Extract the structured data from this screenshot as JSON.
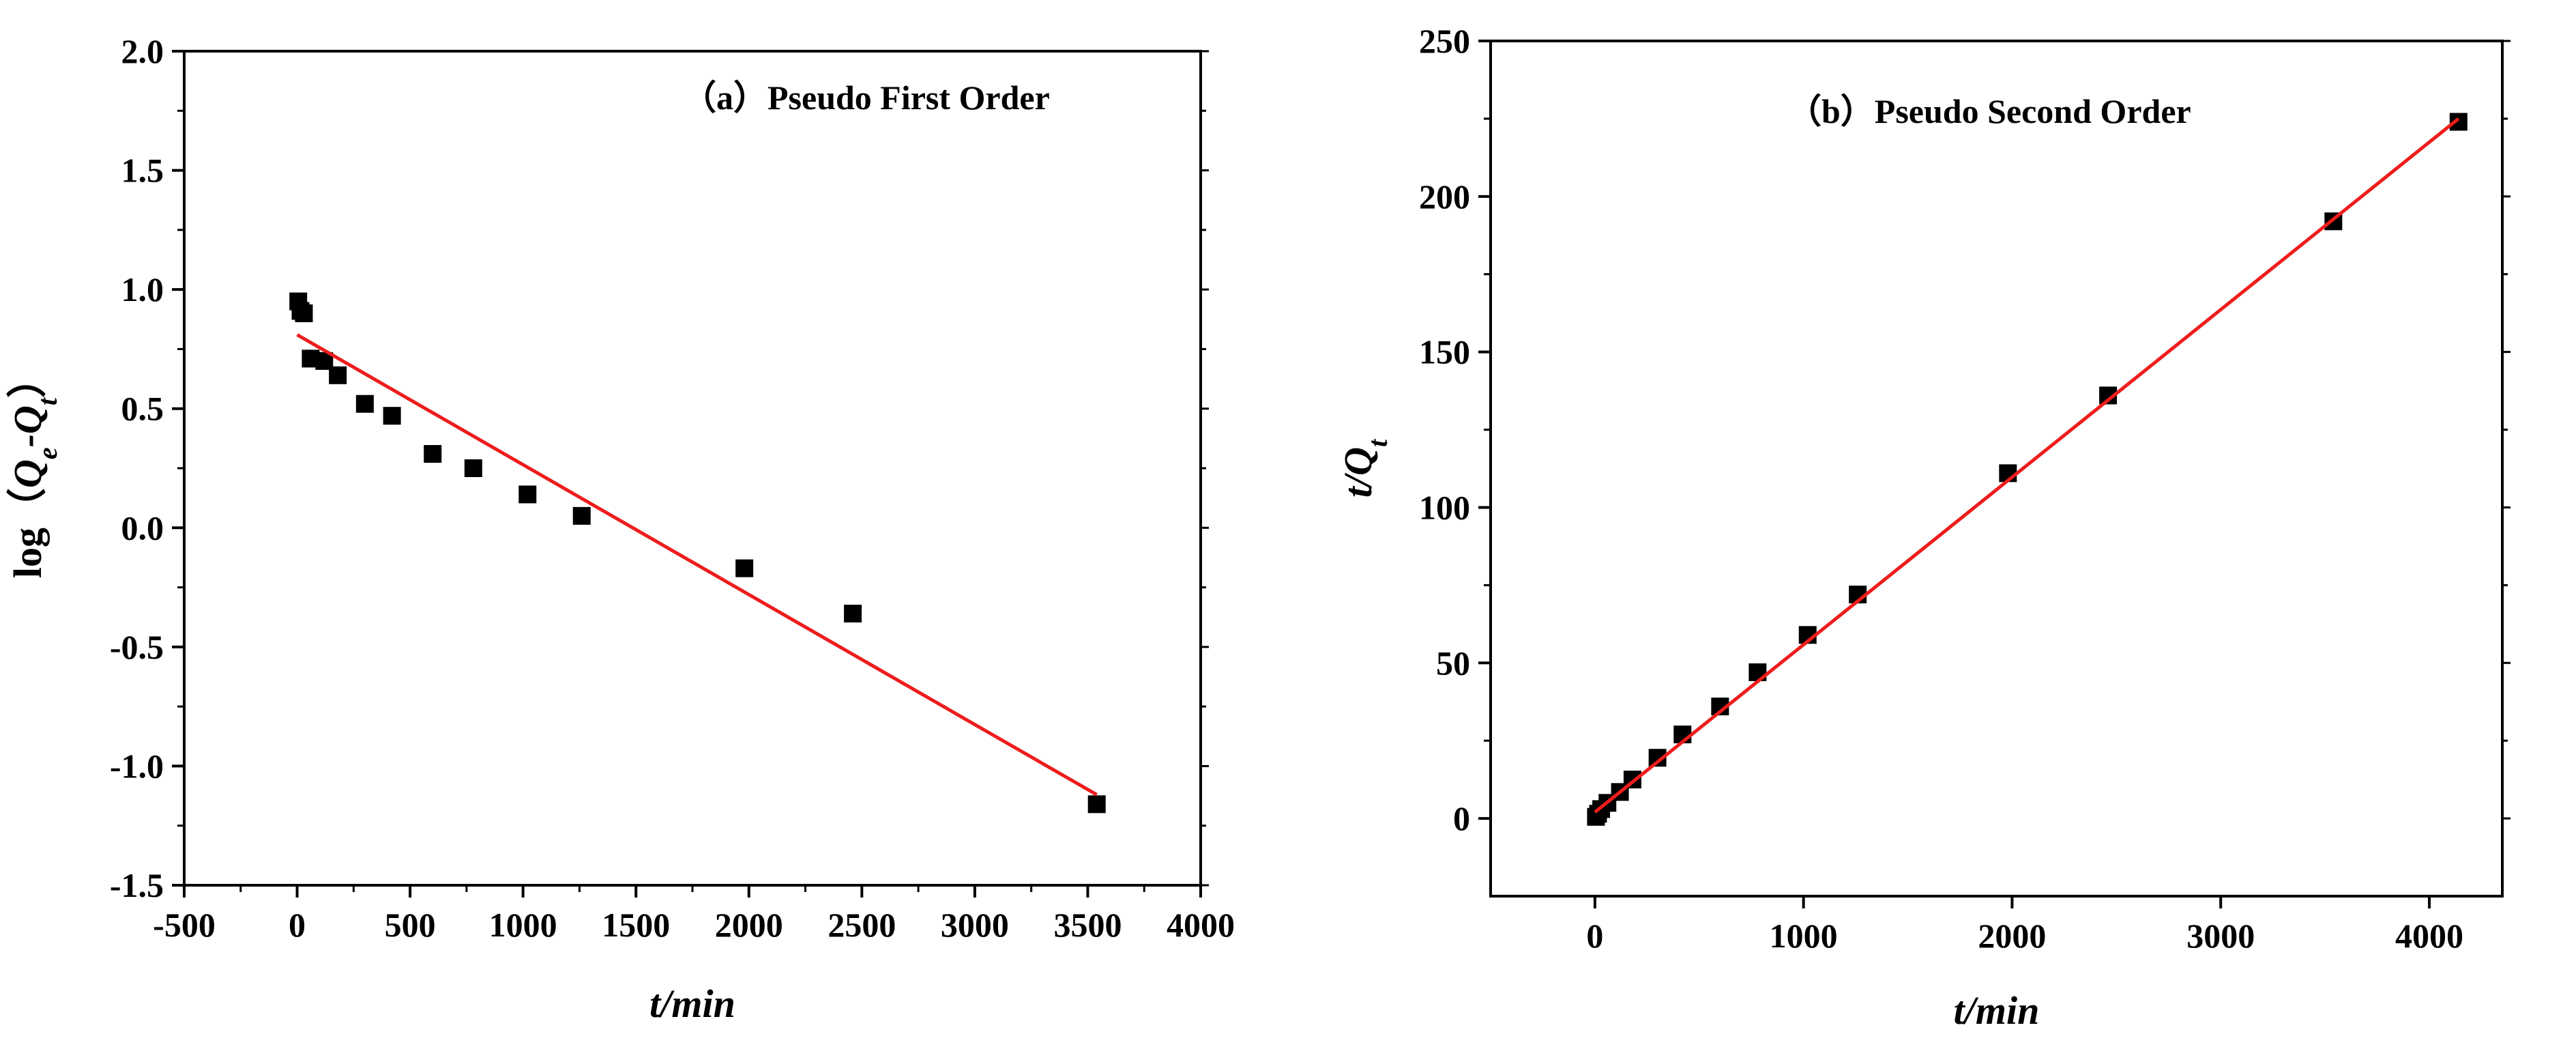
{
  "colors": {
    "points": "#000000",
    "fit_line": "#ee1c1c",
    "axes": "#000000"
  },
  "chart_data": [
    {
      "type": "scatter",
      "title": "（a）Pseudo First Order",
      "xlabel": "t/min",
      "ylabel_parts": [
        "log（",
        "Q",
        "e",
        "-",
        "Q",
        "t",
        "）"
      ],
      "xlim": [
        -500,
        4000
      ],
      "ylim": [
        -1.5,
        2.0
      ],
      "xticks": [
        -500,
        0,
        500,
        1000,
        1500,
        2000,
        2500,
        3000,
        3500,
        4000
      ],
      "xtick_labels": [
        "-500",
        "0",
        "500",
        "1000",
        "1500",
        "2000",
        "2500",
        "3000",
        "3500",
        "4000"
      ],
      "yticks": [
        -1.5,
        -1.0,
        -0.5,
        0.0,
        0.5,
        1.0,
        1.5,
        2.0
      ],
      "ytick_labels": [
        "-1.5",
        "-1.0",
        "-0.5",
        "0.0",
        "0.5",
        "1.0",
        "1.5",
        "2.0"
      ],
      "grid": false,
      "legend": "none",
      "series": [
        {
          "kind": "points",
          "x": [
            5,
            15,
            30,
            60,
            120,
            180,
            300,
            420,
            600,
            780,
            1020,
            1260,
            1980,
            2460,
            3540
          ],
          "y": [
            0.95,
            0.91,
            0.9,
            0.71,
            0.7,
            0.64,
            0.52,
            0.47,
            0.31,
            0.25,
            0.14,
            0.05,
            -0.17,
            -0.36,
            -1.16
          ]
        },
        {
          "kind": "fit_line",
          "x": [
            0,
            3540
          ],
          "y": [
            0.81,
            -1.12
          ]
        }
      ]
    },
    {
      "type": "scatter",
      "title": "（b）Pseudo Second Order",
      "xlabel": "t/min",
      "ylabel_parts": [
        "t",
        "/",
        "Q",
        "t"
      ],
      "xlim": [
        -500,
        4350
      ],
      "ylim": [
        -25,
        250
      ],
      "xticks": [
        0,
        1000,
        2000,
        3000,
        4000
      ],
      "xtick_labels": [
        "0",
        "1000",
        "2000",
        "3000",
        "4000"
      ],
      "yticks": [
        0,
        50,
        100,
        150,
        200,
        250
      ],
      "ytick_labels": [
        "0",
        "50",
        "100",
        "150",
        "200",
        "250"
      ],
      "grid": false,
      "legend": "none",
      "series": [
        {
          "kind": "points",
          "x": [
            5,
            15,
            30,
            60,
            120,
            180,
            300,
            420,
            600,
            780,
            1020,
            1260,
            1980,
            2460,
            3540,
            4140
          ],
          "y": [
            0.5,
            1.5,
            3,
            5,
            8.5,
            12.5,
            19.5,
            27,
            36,
            47,
            59,
            72,
            111,
            136,
            192,
            224
          ]
        },
        {
          "kind": "fit_line",
          "x": [
            0,
            4140
          ],
          "y": [
            2,
            225
          ]
        }
      ]
    }
  ]
}
